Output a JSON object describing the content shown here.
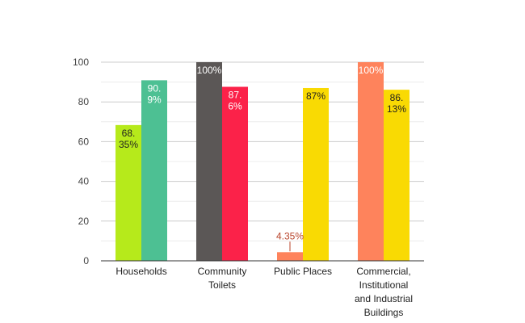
{
  "chart_data": {
    "type": "bar",
    "title": "",
    "xlabel": "",
    "ylabel": "",
    "ylim": [
      0,
      100
    ],
    "yticks": [
      0,
      20,
      40,
      60,
      80,
      100
    ],
    "grid": true,
    "legend": "none",
    "groups": [
      {
        "category": [
          "Households"
        ],
        "bars": [
          {
            "value": 68.35,
            "label": [
              "68.",
              "35%"
            ],
            "color": "#b6ea1b",
            "label_color": "#1f1f1f"
          },
          {
            "value": 90.9,
            "label": [
              "90.",
              "9%"
            ],
            "color": "#4dc093",
            "label_color": "#ffffff"
          }
        ]
      },
      {
        "category": [
          "Community",
          "Toilets"
        ],
        "bars": [
          {
            "value": 100,
            "label": [
              "100%"
            ],
            "color": "#5b5756",
            "label_color": "#ffffff"
          },
          {
            "value": 87.6,
            "label": [
              "87.",
              "6%"
            ],
            "color": "#fb2249",
            "label_color": "#ffffff"
          }
        ]
      },
      {
        "category": [
          "Public Places"
        ],
        "bars": [
          {
            "value": 4.35,
            "label": [
              "4.35%"
            ],
            "color": "#fe835c",
            "label_color": "#b8432a",
            "label_outside": true
          },
          {
            "value": 87,
            "label": [
              "87%"
            ],
            "color": "#f9da03",
            "label_color": "#1f1f1f"
          }
        ]
      },
      {
        "category": [
          "Commercial,",
          "Institutional",
          "and Industrial",
          "Buildings"
        ],
        "bars": [
          {
            "value": 100,
            "label": [
              "100%"
            ],
            "color": "#fe835c",
            "label_color": "#ffffff"
          },
          {
            "value": 86.13,
            "label": [
              "86.",
              "13%"
            ],
            "color": "#f9da03",
            "label_color": "#1f1f1f"
          }
        ]
      }
    ]
  }
}
